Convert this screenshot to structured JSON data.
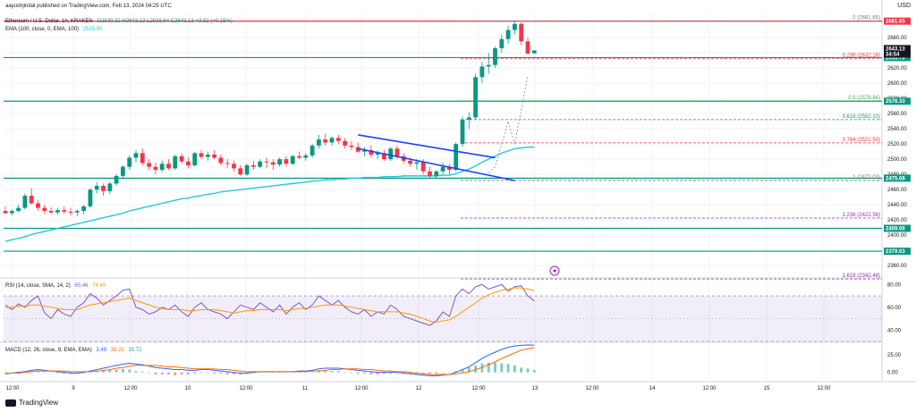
{
  "publisher": "aayushjindal published on TradingView.com, Feb 13, 2024 04:25 UTC",
  "currency": "USD",
  "legend": {
    "symbol": "Ethereum / U.S. Dollar, 1h, KRAKEN",
    "ohlc": "O2639.32  H2643.13  L2638.64  C2643.13  +3.92 (+0.15%)",
    "ema": "EMA (100, close, 0, EMA, 100)",
    "ema_value": "2515.90",
    "rsi": "RSI (14, close, SMA, 14, 2)",
    "rsi_v1": "65.46",
    "rsi_v2": "74.49",
    "macd": "MACD (12, 26, close, 9, EMA, EMA)",
    "macd_v1": "3.49",
    "macd_v2": "39.21",
    "macd_v3": "35.72"
  },
  "footer": "TradingView",
  "colors": {
    "up": "#089981",
    "down": "#f23645",
    "ema": "#26c6da",
    "support": "#089981",
    "resistance": "#f23645",
    "rsi": "#7e57c2",
    "rsi_ma": "#ff9800",
    "macd": "#2962ff",
    "signal": "#ff6d00",
    "channel": "#1e40ff"
  },
  "chart_data": [
    {
      "type": "candlestick",
      "title": "Ethereum / U.S. Dollar, 1h, KRAKEN",
      "x_ticks": [
        "12:00",
        "9",
        "12:00",
        "10",
        "12:00",
        "11",
        "12:00",
        "12",
        "12:00",
        "13",
        "12:00",
        "14",
        "12:00",
        "15",
        "12:00"
      ],
      "y_ticks": [
        2360,
        2380,
        2400,
        2420,
        2440,
        2460,
        2480,
        2500,
        2520,
        2540,
        2560,
        2580,
        2600,
        2620,
        2640,
        2660,
        2680
      ],
      "ylim": [
        2345,
        2693
      ],
      "last_price": "2643.13",
      "countdown": "34:54",
      "price_levels": [
        {
          "value": 2681.65,
          "label": "2681.65",
          "kind": "resistance"
        },
        {
          "value": 2633.7,
          "label": "2633.70",
          "kind": "support"
        },
        {
          "value": 2576.33,
          "label": "2576.33",
          "kind": "support"
        },
        {
          "value": 2475.08,
          "label": "2475.08",
          "kind": "support"
        },
        {
          "value": 2409.08,
          "label": "2409.08",
          "kind": "support"
        },
        {
          "value": 2379.03,
          "label": "2379.03",
          "kind": "support"
        }
      ],
      "fib_levels": [
        {
          "ratio": "0",
          "value": 2681.65,
          "label": "0 (2681.65)"
        },
        {
          "ratio": "0.236",
          "value": 2632.18,
          "label": "0.236 (2632.18)"
        },
        {
          "ratio": "0.5",
          "value": 2576.84,
          "label": "0.5 (2576.84)"
        },
        {
          "ratio": "0.618",
          "value": 2552.1,
          "label": "0.618 (2552.10)"
        },
        {
          "ratio": "0.764",
          "value": 2521.5,
          "label": "0.764 (2521.50)"
        },
        {
          "ratio": "1",
          "value": 2472.03,
          "label": "1 (2472.03)"
        },
        {
          "ratio": "1.236",
          "value": 2422.56,
          "label": "1.236 (2422.56)"
        },
        {
          "ratio": "1.618",
          "value": 2342.48,
          "label": "1.618 (2342.48)"
        }
      ],
      "candles": [
        [
          2432,
          2438,
          2428,
          2429
        ],
        [
          2429,
          2434,
          2426,
          2432
        ],
        [
          2432,
          2440,
          2430,
          2436
        ],
        [
          2436,
          2455,
          2434,
          2452
        ],
        [
          2452,
          2462,
          2440,
          2442
        ],
        [
          2442,
          2446,
          2432,
          2436
        ],
        [
          2436,
          2440,
          2428,
          2432
        ],
        [
          2432,
          2437,
          2428,
          2430
        ],
        [
          2430,
          2436,
          2427,
          2433
        ],
        [
          2433,
          2438,
          2428,
          2431
        ],
        [
          2431,
          2436,
          2426,
          2430
        ],
        [
          2430,
          2434,
          2425,
          2432
        ],
        [
          2432,
          2440,
          2428,
          2438
        ],
        [
          2438,
          2462,
          2436,
          2460
        ],
        [
          2460,
          2470,
          2455,
          2465
        ],
        [
          2465,
          2468,
          2452,
          2458
        ],
        [
          2458,
          2470,
          2454,
          2468
        ],
        [
          2468,
          2480,
          2465,
          2478
        ],
        [
          2478,
          2492,
          2474,
          2490
        ],
        [
          2490,
          2505,
          2486,
          2502
        ],
        [
          2502,
          2512,
          2496,
          2508
        ],
        [
          2508,
          2514,
          2492,
          2495
        ],
        [
          2495,
          2500,
          2486,
          2490
        ],
        [
          2490,
          2496,
          2480,
          2486
        ],
        [
          2486,
          2498,
          2483,
          2494
        ],
        [
          2494,
          2500,
          2486,
          2488
        ],
        [
          2488,
          2506,
          2486,
          2504
        ],
        [
          2504,
          2508,
          2494,
          2497
        ],
        [
          2497,
          2502,
          2488,
          2492
        ],
        [
          2492,
          2510,
          2490,
          2508
        ],
        [
          2508,
          2512,
          2500,
          2503
        ],
        [
          2503,
          2510,
          2498,
          2506
        ],
        [
          2506,
          2512,
          2500,
          2502
        ],
        [
          2502,
          2506,
          2492,
          2495
        ],
        [
          2495,
          2500,
          2488,
          2494
        ],
        [
          2494,
          2498,
          2484,
          2488
        ],
        [
          2488,
          2492,
          2478,
          2480
        ],
        [
          2480,
          2494,
          2478,
          2492
        ],
        [
          2492,
          2498,
          2486,
          2490
        ],
        [
          2490,
          2500,
          2488,
          2497
        ],
        [
          2497,
          2502,
          2488,
          2496
        ],
        [
          2496,
          2500,
          2486,
          2493
        ],
        [
          2493,
          2502,
          2490,
          2500
        ],
        [
          2500,
          2504,
          2490,
          2494
        ],
        [
          2494,
          2506,
          2492,
          2504
        ],
        [
          2504,
          2510,
          2500,
          2502
        ],
        [
          2502,
          2508,
          2498,
          2505
        ],
        [
          2505,
          2520,
          2502,
          2518
        ],
        [
          2518,
          2532,
          2514,
          2526
        ],
        [
          2526,
          2534,
          2518,
          2522
        ],
        [
          2522,
          2530,
          2518,
          2528
        ],
        [
          2528,
          2532,
          2520,
          2524
        ],
        [
          2524,
          2528,
          2514,
          2518
        ],
        [
          2518,
          2524,
          2512,
          2516
        ],
        [
          2516,
          2522,
          2508,
          2510
        ],
        [
          2510,
          2516,
          2504,
          2512
        ],
        [
          2512,
          2518,
          2502,
          2506
        ],
        [
          2506,
          2512,
          2500,
          2508
        ],
        [
          2508,
          2512,
          2498,
          2500
        ],
        [
          2500,
          2516,
          2498,
          2514
        ],
        [
          2514,
          2518,
          2500,
          2504
        ],
        [
          2504,
          2508,
          2494,
          2498
        ],
        [
          2498,
          2502,
          2490,
          2494
        ],
        [
          2494,
          2500,
          2486,
          2496
        ],
        [
          2496,
          2500,
          2480,
          2484
        ],
        [
          2484,
          2490,
          2474,
          2478
        ],
        [
          2478,
          2486,
          2474,
          2484
        ],
        [
          2484,
          2496,
          2480,
          2490
        ],
        [
          2490,
          2494,
          2480,
          2486
        ],
        [
          2486,
          2522,
          2484,
          2520
        ],
        [
          2520,
          2556,
          2516,
          2552
        ],
        [
          2552,
          2562,
          2540,
          2555
        ],
        [
          2555,
          2612,
          2552,
          2608
        ],
        [
          2608,
          2628,
          2600,
          2622
        ],
        [
          2622,
          2640,
          2612,
          2624
        ],
        [
          2624,
          2648,
          2620,
          2646
        ],
        [
          2646,
          2664,
          2640,
          2658
        ],
        [
          2658,
          2676,
          2652,
          2670
        ],
        [
          2670,
          2682,
          2664,
          2678
        ],
        [
          2678,
          2680,
          2650,
          2655
        ],
        [
          2655,
          2660,
          2638,
          2639
        ],
        [
          2639.32,
          2643.13,
          2638.64,
          2643.13
        ]
      ],
      "ema": [
        2392,
        2394,
        2396,
        2398,
        2401,
        2403,
        2405,
        2407,
        2409,
        2411,
        2413,
        2415,
        2417,
        2419,
        2421,
        2423,
        2425,
        2427,
        2429,
        2432,
        2434,
        2436,
        2438,
        2440,
        2442,
        2444,
        2446,
        2448,
        2449,
        2451,
        2452,
        2454,
        2455,
        2457,
        2458,
        2459,
        2460,
        2461,
        2462,
        2463,
        2464,
        2465,
        2466,
        2467,
        2468,
        2469,
        2470,
        2471,
        2472,
        2473,
        2473,
        2474,
        2474,
        2475,
        2475,
        2476,
        2476,
        2476,
        2477,
        2477,
        2477,
        2478,
        2478,
        2478,
        2478,
        2478,
        2478,
        2479,
        2479,
        2481,
        2484,
        2487,
        2491,
        2496,
        2500,
        2504,
        2508,
        2511,
        2514,
        2515,
        2516,
        2515.9
      ],
      "channel": {
        "upper": [
          [
            2532,
            54
          ],
          [
            2502,
            75
          ]
        ],
        "lower": [
          [
            2514,
            54
          ],
          [
            2472,
            78
          ]
        ]
      },
      "projection": [
        [
          2482,
          74
        ],
        [
          2490,
          75
        ],
        [
          2550,
          77
        ],
        [
          2520,
          78
        ],
        [
          2610,
          80
        ]
      ]
    },
    {
      "type": "line",
      "title": "RSI (14, close, SMA, 14, 2)",
      "y_ticks": [
        40,
        60,
        80
      ],
      "ylim": [
        30,
        85
      ],
      "band": [
        30,
        70
      ],
      "series": [
        {
          "name": "RSI",
          "values": [
            62,
            58,
            63,
            60,
            66,
            70,
            55,
            50,
            58,
            54,
            52,
            60,
            64,
            72,
            68,
            62,
            66,
            70,
            75,
            76,
            60,
            58,
            54,
            56,
            60,
            58,
            62,
            56,
            52,
            60,
            64,
            58,
            56,
            54,
            50,
            56,
            62,
            60,
            58,
            64,
            60,
            56,
            62,
            54,
            60,
            64,
            58,
            62,
            70,
            66,
            62,
            66,
            60,
            56,
            54,
            58,
            52,
            56,
            54,
            62,
            58,
            52,
            50,
            48,
            46,
            44,
            48,
            56,
            52,
            70,
            76,
            72,
            78,
            80,
            76,
            78,
            80,
            74,
            78,
            79,
            70,
            65.46
          ]
        },
        {
          "name": "RSI-based MA",
          "values": [
            60,
            60,
            61,
            61,
            62,
            62,
            61,
            60,
            59,
            58,
            58,
            58,
            60,
            62,
            63,
            64,
            65,
            66,
            67,
            68,
            66,
            64,
            62,
            60,
            59,
            58,
            58,
            58,
            57,
            57,
            58,
            58,
            58,
            57,
            56,
            55,
            56,
            57,
            57,
            58,
            58,
            58,
            58,
            57,
            58,
            59,
            59,
            60,
            61,
            62,
            62,
            62,
            61,
            60,
            59,
            58,
            57,
            56,
            56,
            56,
            56,
            55,
            54,
            52,
            50,
            48,
            47,
            48,
            49,
            52,
            56,
            60,
            64,
            68,
            71,
            73,
            75,
            76,
            77,
            77,
            76,
            74.49
          ]
        }
      ]
    },
    {
      "type": "line",
      "title": "MACD (12, 26, close, 9, EMA, EMA)",
      "y_ticks": [
        0,
        25
      ],
      "ylim": [
        -12,
        42
      ],
      "series": [
        {
          "name": "MACD",
          "values": [
            -2,
            -1,
            0,
            1,
            3,
            4,
            3,
            2,
            1,
            0,
            -1,
            -1,
            0,
            2,
            4,
            6,
            8,
            10,
            12,
            13,
            12,
            11,
            9,
            7,
            6,
            5,
            4,
            4,
            3,
            3,
            4,
            4,
            3,
            2,
            1,
            0,
            -1,
            -1,
            0,
            1,
            1,
            1,
            1,
            1,
            1,
            2,
            2,
            3,
            5,
            6,
            6,
            6,
            5,
            4,
            3,
            2,
            1,
            0,
            0,
            0,
            0,
            -1,
            -2,
            -3,
            -4,
            -5,
            -5,
            -4,
            -3,
            0,
            4,
            8,
            14,
            20,
            25,
            29,
            33,
            36,
            38,
            39,
            39.5,
            39.21
          ]
        },
        {
          "name": "Signal",
          "values": [
            -1,
            -1,
            -1,
            0,
            1,
            2,
            2,
            2,
            2,
            2,
            1,
            1,
            1,
            1,
            2,
            3,
            4,
            6,
            7,
            9,
            10,
            10,
            10,
            10,
            9,
            8,
            8,
            7,
            6,
            5,
            5,
            5,
            5,
            4,
            4,
            3,
            2,
            1,
            1,
            1,
            1,
            1,
            1,
            1,
            1,
            1,
            1,
            2,
            2,
            3,
            4,
            4,
            5,
            5,
            5,
            4,
            4,
            3,
            2,
            2,
            1,
            1,
            0,
            -1,
            -2,
            -3,
            -3,
            -3,
            -3,
            -2,
            -1,
            1,
            4,
            7,
            11,
            15,
            20,
            24,
            28,
            32,
            34,
            35.72
          ]
        },
        {
          "name": "Histogram",
          "values": [
            -1,
            0,
            1,
            1,
            2,
            2,
            1,
            0,
            -1,
            -2,
            -2,
            -2,
            -1,
            1,
            2,
            3,
            4,
            4,
            5,
            4,
            2,
            1,
            -1,
            -3,
            -3,
            -3,
            -4,
            -3,
            -3,
            -2,
            -1,
            -1,
            -2,
            -2,
            -3,
            -3,
            -3,
            -2,
            -1,
            0,
            0,
            0,
            0,
            0,
            0,
            1,
            1,
            1,
            3,
            3,
            2,
            2,
            0,
            -1,
            -2,
            -2,
            -3,
            -3,
            -2,
            -2,
            -1,
            -2,
            -2,
            -2,
            -2,
            -2,
            -2,
            -1,
            0,
            2,
            5,
            7,
            10,
            13,
            14,
            14,
            13,
            12,
            10,
            7,
            5.5,
            3.49
          ]
        }
      ]
    }
  ]
}
